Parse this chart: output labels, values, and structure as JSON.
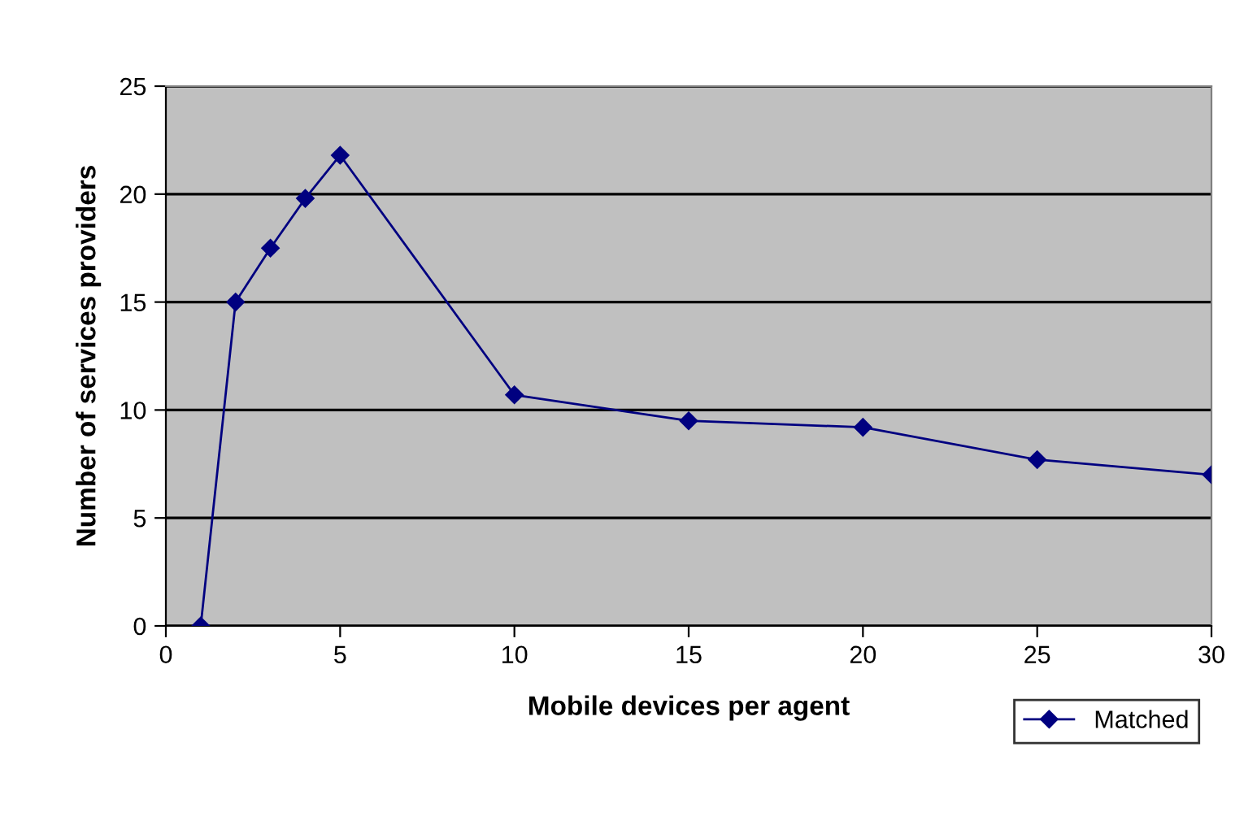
{
  "chart_data": {
    "type": "line",
    "xlabel": "Mobile devices per agent",
    "ylabel": "Number of services providers",
    "x": [
      1,
      2,
      3,
      4,
      5,
      10,
      15,
      20,
      25,
      30
    ],
    "series": [
      {
        "name": "Matched",
        "color": "#000080",
        "values": [
          0,
          15.0,
          17.5,
          19.8,
          21.8,
          10.7,
          9.5,
          9.2,
          7.7,
          7.0
        ]
      }
    ],
    "xlim": [
      0,
      30
    ],
    "xticks": [
      0,
      5,
      10,
      15,
      20,
      25,
      30
    ],
    "ylim": [
      0,
      25
    ],
    "yticks": [
      0,
      5,
      10,
      15,
      20,
      25
    ],
    "grid": "y",
    "legend": "bottom right",
    "marker": "diamond",
    "line_style": "solid"
  }
}
